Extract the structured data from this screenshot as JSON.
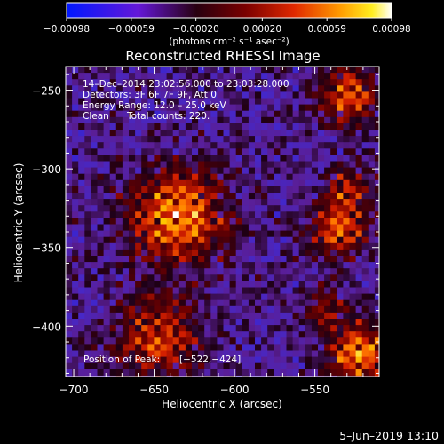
{
  "chart_data": {
    "type": "heatmap",
    "title": "Reconstructed RHESSI Image",
    "xlabel": "Heliocentric X (arcsec)",
    "ylabel": "Heliocentric Y (arcsec)",
    "xlim": [
      -705,
      -510
    ],
    "ylim": [
      -432,
      -235
    ],
    "x_ticks": [
      -700,
      -650,
      -600,
      -550
    ],
    "y_ticks": [
      -250,
      -300,
      -350,
      -400
    ],
    "x_tick_labels": [
      "−700",
      "−650",
      "−600",
      "−550"
    ],
    "y_tick_labels": [
      "−250",
      "−300",
      "−350",
      "−400"
    ],
    "colorbar": {
      "range": [
        -0.00098,
        0.00098
      ],
      "tick_values": [
        -0.00098,
        -0.00059,
        -0.0002,
        0.0002,
        0.00059,
        0.00098
      ],
      "tick_labels": [
        "−0.00098",
        "−0.00059",
        "−0.00020",
        "0.00020",
        "0.00059",
        "0.00098"
      ],
      "units": "(photons cm⁻² s⁻¹ asec⁻²)",
      "colors": [
        "#0018ff",
        "#7a10c8",
        "#4a0000",
        "#c81e00",
        "#ff8a00",
        "#ffe000",
        "#ffffff"
      ]
    },
    "annotations": {
      "time_range": "14–Dec–2014 23:02:56.000 to 23:03:28.000",
      "detectors": "Detectors: 3F 6F 7F 9F, Att 0",
      "energy_range": "Energy Range: 12.0 – 25.0 keV",
      "algorithm": "Clean",
      "total_counts": "Total counts: 220.",
      "peak_label": "Position of Peak:",
      "peak_value": "[−522,−424]"
    },
    "peak": [
      -522,
      -424
    ],
    "sources": [
      {
        "x": -635,
        "y": -330,
        "sigma": 20,
        "amp": 1.0
      },
      {
        "x": -648,
        "y": -407,
        "sigma": 18,
        "amp": 0.72
      },
      {
        "x": -530,
        "y": -253,
        "sigma": 13,
        "amp": 0.75
      },
      {
        "x": -527,
        "y": -312,
        "sigma": 10,
        "amp": 0.55
      },
      {
        "x": -535,
        "y": -338,
        "sigma": 12,
        "amp": 0.82
      },
      {
        "x": -522,
        "y": -418,
        "sigma": 13,
        "amp": 1.0
      },
      {
        "x": -545,
        "y": -388,
        "sigma": 9,
        "amp": 0.45
      }
    ]
  },
  "footer": {
    "timestamp": "5–Jun–2019 13:10"
  }
}
